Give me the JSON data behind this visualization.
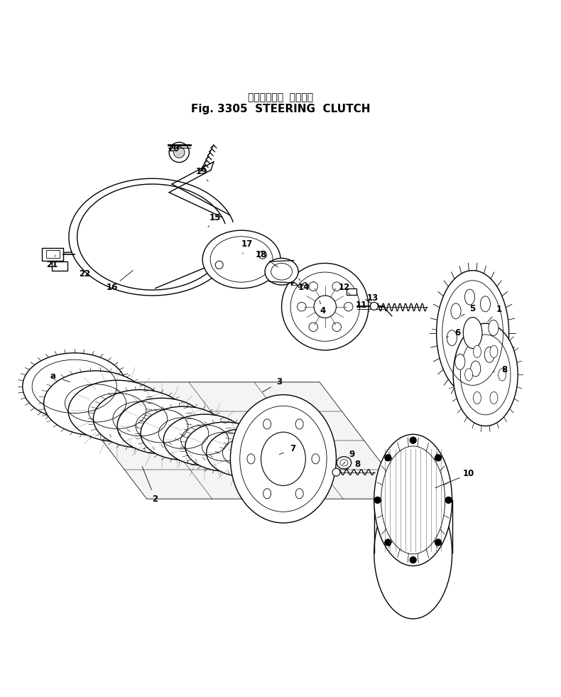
{
  "title_japanese": "ステアリング クラッチ",
  "title_english": "Fig. 3305  STEERING  CLUTCH",
  "bg_color": "#ffffff",
  "line_color": "#000000",
  "fig_width": 7.9,
  "fig_height": 9.81,
  "dpi": 100
}
